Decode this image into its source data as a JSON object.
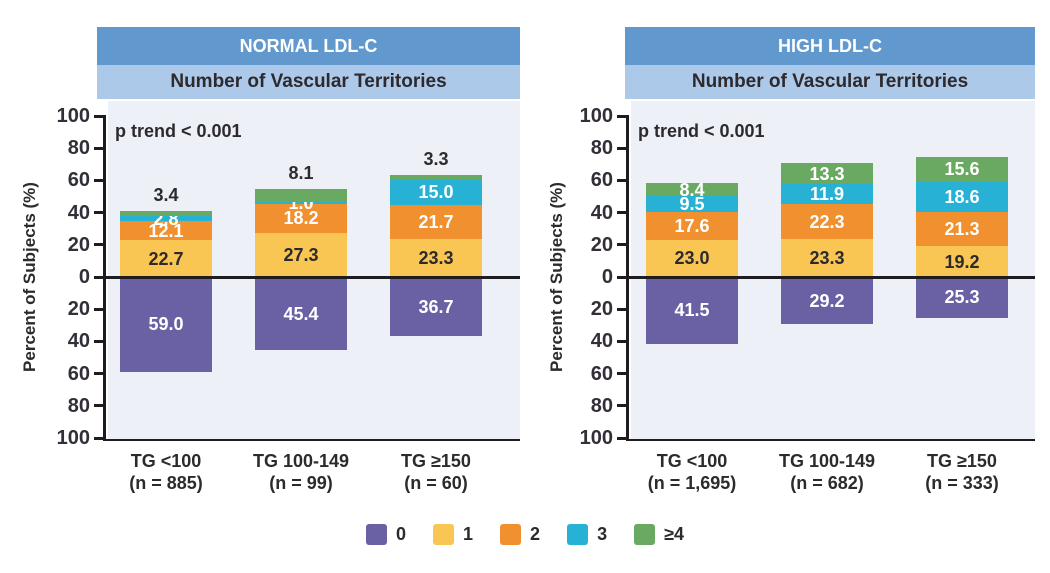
{
  "figure": {
    "legend": {
      "items": [
        {
          "label": "0",
          "color": "#6a60a4"
        },
        {
          "label": "1",
          "color": "#f9c553"
        },
        {
          "label": "2",
          "color": "#f0902e"
        },
        {
          "label": "3",
          "color": "#27b2d5"
        },
        {
          "label": "≥4",
          "color": "#6aa961"
        }
      ]
    },
    "colors": {
      "header_bg": "#6199ce",
      "subheader_bg": "#adc9ea",
      "plot_bg": "#edf0f6",
      "axis": "#1e1b21",
      "text_dark": "#2d2a2e",
      "label_light": "#ffffff"
    }
  },
  "chart_data": [
    {
      "type": "bar",
      "stacked": true,
      "orientation": "diverging-vertical",
      "title": "NORMAL LDL-C",
      "subtitle": "Number of Vascular Territories",
      "annotation": "p trend < 0.001",
      "ylabel": "Percent of Subjects (%)",
      "ylim": [
        -100,
        100
      ],
      "yticks": [
        100,
        80,
        60,
        40,
        20,
        0,
        20,
        40,
        60,
        80,
        100
      ],
      "categories": [
        [
          "TG <100",
          "(n = 885)"
        ],
        [
          "TG 100-149",
          "(n = 99)"
        ],
        [
          "TG ≥150",
          "(n = 60)"
        ]
      ],
      "top_series_labels_above_bar": true,
      "series": [
        {
          "name": "0",
          "color": "#6a60a4",
          "direction": "down",
          "values": [
            59.0,
            45.4,
            36.7
          ]
        },
        {
          "name": "1",
          "color": "#f9c553",
          "direction": "up",
          "values": [
            22.7,
            27.3,
            23.3
          ]
        },
        {
          "name": "2",
          "color": "#f0902e",
          "direction": "up",
          "values": [
            12.1,
            18.2,
            21.7
          ]
        },
        {
          "name": "3",
          "color": "#27b2d5",
          "direction": "up",
          "values": [
            2.8,
            1.0,
            15.0
          ]
        },
        {
          "name": "≥4",
          "color": "#6aa961",
          "direction": "up",
          "values": [
            3.4,
            8.1,
            3.3
          ]
        }
      ]
    },
    {
      "type": "bar",
      "stacked": true,
      "orientation": "diverging-vertical",
      "title": "HIGH LDL-C",
      "subtitle": "Number of Vascular Territories",
      "annotation": "p trend < 0.001",
      "ylabel": "Percent of Subjects (%)",
      "ylim": [
        -100,
        100
      ],
      "yticks": [
        100,
        80,
        60,
        40,
        20,
        0,
        20,
        40,
        60,
        80,
        100
      ],
      "categories": [
        [
          "TG <100",
          "(n = 1,695)"
        ],
        [
          "TG 100-149",
          "(n = 682)"
        ],
        [
          "TG ≥150",
          "(n = 333)"
        ]
      ],
      "top_series_labels_above_bar": false,
      "series": [
        {
          "name": "0",
          "color": "#6a60a4",
          "direction": "down",
          "values": [
            41.5,
            29.2,
            25.3
          ]
        },
        {
          "name": "1",
          "color": "#f9c553",
          "direction": "up",
          "values": [
            23.0,
            23.3,
            19.2
          ]
        },
        {
          "name": "2",
          "color": "#f0902e",
          "direction": "up",
          "values": [
            17.6,
            22.3,
            21.3
          ]
        },
        {
          "name": "3",
          "color": "#27b2d5",
          "direction": "up",
          "values": [
            9.5,
            11.9,
            18.6
          ]
        },
        {
          "name": "≥4",
          "color": "#6aa961",
          "direction": "up",
          "values": [
            8.4,
            13.3,
            15.6
          ]
        }
      ]
    }
  ]
}
